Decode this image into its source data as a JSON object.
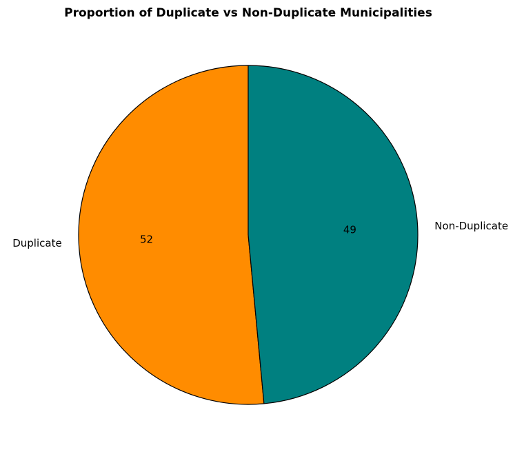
{
  "chart_data": {
    "type": "pie",
    "title": "Proportion of Duplicate vs Non-Duplicate Municipalities",
    "start_angle_deg": 90,
    "direction": "counterclockwise",
    "slices": [
      {
        "label": "Duplicate",
        "value": 52,
        "display": "52",
        "color": "#FF8C00"
      },
      {
        "label": "Non-Duplicate",
        "value": 49,
        "display": "49",
        "color": "#008080"
      }
    ],
    "edge_color": "#000000"
  }
}
